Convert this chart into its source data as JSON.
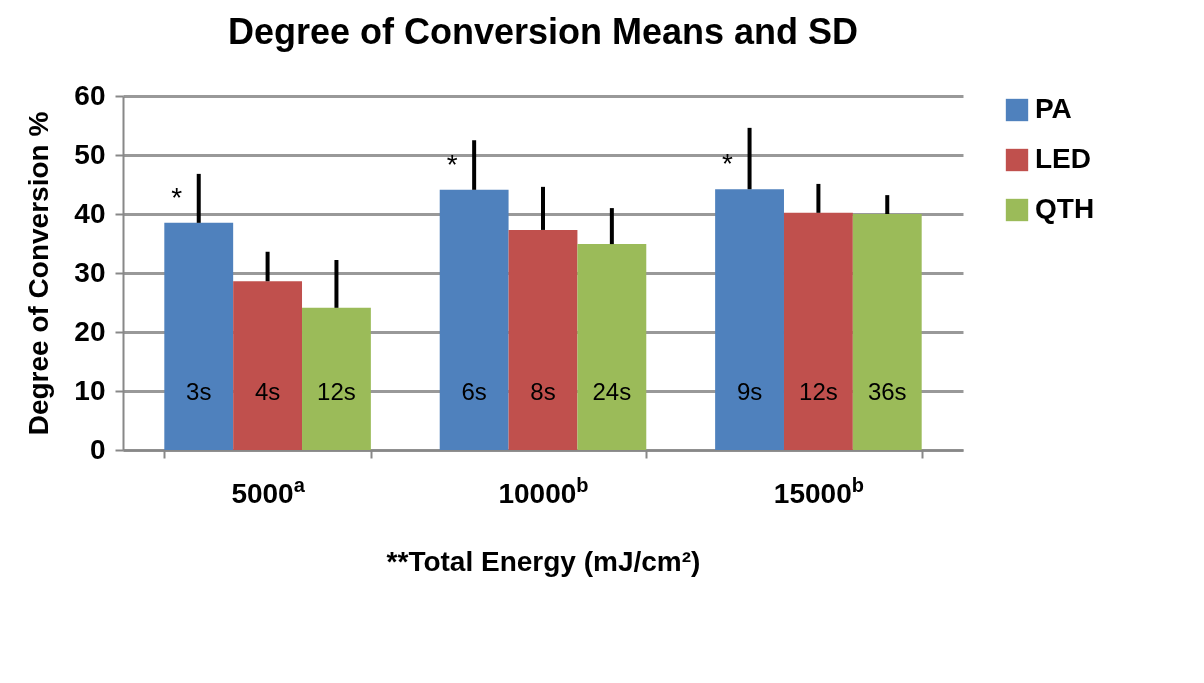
{
  "chart_data": {
    "type": "bar",
    "title": "Degree of Conversion Means and SD",
    "xlabel": "**Total Energy (mJ/cm²)",
    "ylabel": "Degree of Conversion %",
    "categories": [
      "5000$^{a}$",
      "10000$^{b}$",
      "15000$^{b}$"
    ],
    "series": [
      {
        "name": "PA",
        "color": "#4f81bd",
        "values": [
          38.5,
          44.1,
          44.2
        ],
        "errors": [
          [
            38.5,
            46.8
          ],
          [
            44.1,
            52.5
          ],
          [
            44.2,
            54.6
          ]
        ]
      },
      {
        "name": "LED",
        "color": "#c0504d",
        "values": [
          28.6,
          37.3,
          40.2
        ],
        "errors": [
          [
            28.6,
            33.6
          ],
          [
            37.3,
            44.6
          ],
          [
            40.2,
            45.1
          ]
        ]
      },
      {
        "name": "QTH",
        "color": "#9bbb59",
        "values": [
          24.1,
          34.9,
          40.0
        ],
        "errors": [
          [
            24.1,
            32.2
          ],
          [
            34.9,
            41.0
          ],
          [
            40.0,
            43.2
          ]
        ]
      }
    ],
    "ylim": [
      0,
      60
    ],
    "yticks": [
      0,
      10,
      20,
      30,
      40,
      50,
      60
    ],
    "grid": "y",
    "legend": "right",
    "annotations": [
      "*",
      "*",
      "*",
      "3s",
      "4s",
      "12s",
      "6s",
      "8s",
      "24s",
      "9s",
      "12s",
      "36s"
    ]
  }
}
